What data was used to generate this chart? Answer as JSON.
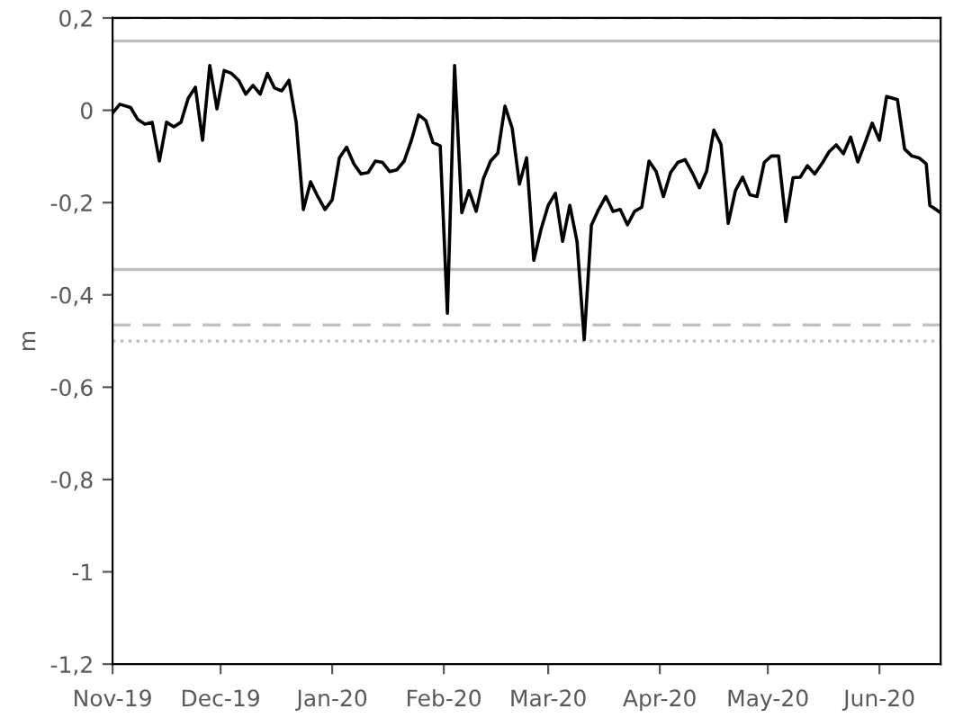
{
  "chart_data": {
    "type": "line",
    "ylabel": "m",
    "x": [
      "2019-11-01",
      "2019-11-03",
      "2019-11-06",
      "2019-11-08",
      "2019-11-10",
      "2019-11-12",
      "2019-11-14",
      "2019-11-16",
      "2019-11-18",
      "2019-11-20",
      "2019-11-22",
      "2019-11-24",
      "2019-11-26",
      "2019-11-28",
      "2019-11-30",
      "2019-12-02",
      "2019-12-04",
      "2019-12-06",
      "2019-12-08",
      "2019-12-10",
      "2019-12-12",
      "2019-12-14",
      "2019-12-16",
      "2019-12-18",
      "2019-12-20",
      "2019-12-22",
      "2019-12-24",
      "2019-12-26",
      "2019-12-28",
      "2019-12-30",
      "2020-01-01",
      "2020-01-03",
      "2020-01-05",
      "2020-01-07",
      "2020-01-09",
      "2020-01-11",
      "2020-01-13",
      "2020-01-15",
      "2020-01-17",
      "2020-01-19",
      "2020-01-21",
      "2020-01-23",
      "2020-01-25",
      "2020-01-27",
      "2020-01-29",
      "2020-01-31",
      "2020-02-02",
      "2020-02-04",
      "2020-02-06",
      "2020-02-08",
      "2020-02-10",
      "2020-02-12",
      "2020-02-14",
      "2020-02-16",
      "2020-02-18",
      "2020-02-20",
      "2020-02-22",
      "2020-02-24",
      "2020-02-26",
      "2020-02-28",
      "2020-03-01",
      "2020-03-03",
      "2020-03-05",
      "2020-03-07",
      "2020-03-09",
      "2020-03-11",
      "2020-03-13",
      "2020-03-15",
      "2020-03-17",
      "2020-03-19",
      "2020-03-21",
      "2020-03-23",
      "2020-03-25",
      "2020-03-27",
      "2020-03-29",
      "2020-03-31",
      "2020-04-02",
      "2020-04-04",
      "2020-04-06",
      "2020-04-08",
      "2020-04-10",
      "2020-04-12",
      "2020-04-14",
      "2020-04-16",
      "2020-04-18",
      "2020-04-20",
      "2020-04-22",
      "2020-04-24",
      "2020-04-26",
      "2020-04-28",
      "2020-04-30",
      "2020-05-02",
      "2020-05-04",
      "2020-05-06",
      "2020-05-08",
      "2020-05-10",
      "2020-05-12",
      "2020-05-14",
      "2020-05-16",
      "2020-05-18",
      "2020-05-20",
      "2020-05-22",
      "2020-05-24",
      "2020-05-26",
      "2020-05-28",
      "2020-05-30",
      "2020-06-01",
      "2020-06-03",
      "2020-06-06",
      "2020-06-08",
      "2020-06-10",
      "2020-06-12",
      "2020-06-14",
      "2020-06-15",
      "2020-06-18"
    ],
    "series": [
      {
        "color": "#000000",
        "values": [
          -0.006,
          0.013,
          0.006,
          -0.02,
          -0.03,
          -0.026,
          -0.11,
          -0.026,
          -0.036,
          -0.026,
          0.026,
          0.05,
          -0.065,
          0.097,
          0.003,
          0.086,
          0.08,
          0.065,
          0.035,
          0.054,
          0.035,
          0.08,
          0.048,
          0.042,
          0.065,
          -0.026,
          -0.215,
          -0.155,
          -0.187,
          -0.215,
          -0.194,
          -0.103,
          -0.08,
          -0.116,
          -0.138,
          -0.135,
          -0.11,
          -0.113,
          -0.133,
          -0.129,
          -0.11,
          -0.065,
          -0.01,
          -0.022,
          -0.07,
          -0.077,
          -0.44,
          0.097,
          -0.222,
          -0.174,
          -0.219,
          -0.148,
          -0.11,
          -0.093,
          0.009,
          -0.039,
          -0.16,
          -0.103,
          -0.325,
          -0.258,
          -0.206,
          -0.18,
          -0.284,
          -0.206,
          -0.284,
          -0.497,
          -0.249,
          -0.215,
          -0.187,
          -0.219,
          -0.215,
          -0.248,
          -0.219,
          -0.21,
          -0.11,
          -0.133,
          -0.187,
          -0.135,
          -0.113,
          -0.107,
          -0.135,
          -0.168,
          -0.132,
          -0.043,
          -0.074,
          -0.245,
          -0.174,
          -0.145,
          -0.183,
          -0.187,
          -0.113,
          -0.099,
          -0.099,
          -0.241,
          -0.146,
          -0.145,
          -0.12,
          -0.138,
          -0.116,
          -0.09,
          -0.075,
          -0.094,
          -0.058,
          -0.112,
          -0.071,
          -0.028,
          -0.065,
          0.03,
          0.023,
          -0.084,
          -0.099,
          -0.103,
          -0.116,
          -0.206,
          -0.222
        ]
      }
    ],
    "xlim": [
      "2019-11-01",
      "2020-06-18"
    ],
    "xticks": [
      {
        "value": "2019-11-01",
        "label": "Nov-19"
      },
      {
        "value": "2019-12-01",
        "label": "Dec-19"
      },
      {
        "value": "2020-01-01",
        "label": "Jan-20"
      },
      {
        "value": "2020-02-01",
        "label": "Feb-20"
      },
      {
        "value": "2020-03-01",
        "label": "Mar-20"
      },
      {
        "value": "2020-04-01",
        "label": "Apr-20"
      },
      {
        "value": "2020-05-01",
        "label": "May-20"
      },
      {
        "value": "2020-06-01",
        "label": "Jun-20"
      }
    ],
    "ylim": [
      -1.2,
      0.2
    ],
    "yticks": [
      {
        "value": 0.2,
        "label": "0,2"
      },
      0,
      {
        "value": -0.2,
        "label": "-0,2"
      },
      {
        "value": -0.4,
        "label": "-0,4"
      },
      {
        "value": -0.6,
        "label": "-0,6"
      },
      {
        "value": -0.8,
        "label": "-0,8"
      },
      -1,
      {
        "value": -1.2,
        "label": "-1,2"
      }
    ],
    "ref_lines": [
      {
        "axis": "y",
        "value": 0.2,
        "color": "#bfbfbf",
        "line_style": "dashed"
      },
      {
        "axis": "y",
        "value": 0.15,
        "color": "#bfbfbf",
        "line_style": "solid"
      },
      {
        "axis": "y",
        "value": -0.345,
        "color": "#bfbfbf",
        "line_style": "solid"
      },
      {
        "axis": "y",
        "value": -0.465,
        "color": "#bfbfbf",
        "line_style": "dashed"
      },
      {
        "axis": "y",
        "value": -0.5,
        "color": "#bfbfbf",
        "line_style": "dotted"
      }
    ],
    "grid": false,
    "marker": "none",
    "line_style": "solid"
  }
}
